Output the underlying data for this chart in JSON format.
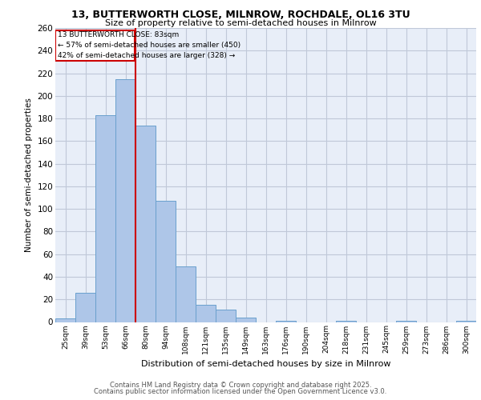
{
  "title1": "13, BUTTERWORTH CLOSE, MILNROW, ROCHDALE, OL16 3TU",
  "title2": "Size of property relative to semi-detached houses in Milnrow",
  "xlabel": "Distribution of semi-detached houses by size in Milnrow",
  "ylabel": "Number of semi-detached properties",
  "bar_labels": [
    "25sqm",
    "39sqm",
    "53sqm",
    "66sqm",
    "80sqm",
    "94sqm",
    "108sqm",
    "121sqm",
    "135sqm",
    "149sqm",
    "163sqm",
    "176sqm",
    "190sqm",
    "204sqm",
    "218sqm",
    "231sqm",
    "245sqm",
    "259sqm",
    "273sqm",
    "286sqm",
    "300sqm"
  ],
  "bar_values": [
    3,
    26,
    183,
    215,
    174,
    107,
    49,
    15,
    11,
    4,
    0,
    1,
    0,
    0,
    1,
    0,
    0,
    1,
    0,
    0,
    1
  ],
  "bar_color": "#aec6e8",
  "bar_edge_color": "#6aa0cd",
  "property_line_bar_idx": 4,
  "property_size": "83sqm",
  "pct_smaller": 57,
  "count_smaller": 450,
  "pct_larger": 42,
  "count_larger": 328,
  "annotation_label": "13 BUTTERWORTH CLOSE: 83sqm",
  "line_color": "#cc0000",
  "ylim": [
    0,
    260
  ],
  "yticks": [
    0,
    20,
    40,
    60,
    80,
    100,
    120,
    140,
    160,
    180,
    200,
    220,
    240,
    260
  ],
  "grid_color": "#c0c8d8",
  "bg_color": "#e8eef8",
  "footer1": "Contains HM Land Registry data © Crown copyright and database right 2025.",
  "footer2": "Contains public sector information licensed under the Open Government Licence v3.0."
}
